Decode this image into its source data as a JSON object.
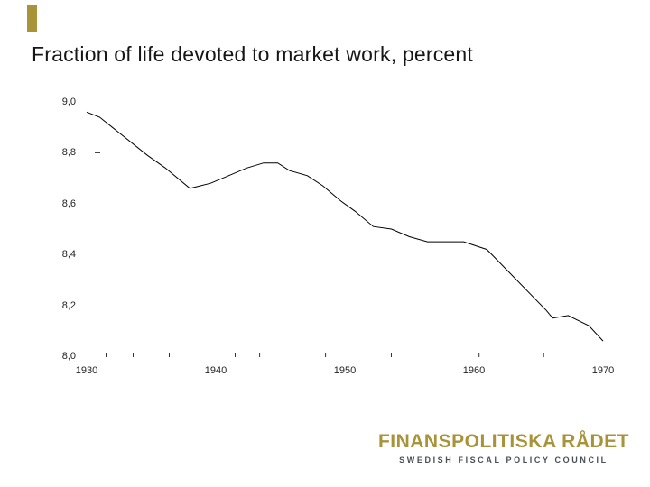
{
  "slide": {
    "title": "Fraction of life devoted to market work, percent",
    "accent_color": "#A99339"
  },
  "logo": {
    "name": "FINANSPOLITISKA RÅDET",
    "subtitle": "SWEDISH FISCAL POLICY COUNCIL",
    "gold_color": "#A99339",
    "subtitle_color": "#4A4F54"
  },
  "chart_data": {
    "type": "line",
    "title": "Fraction of life devoted to market work, percent",
    "xlabel": "",
    "ylabel": "",
    "xlim": [
      1930,
      1970
    ],
    "ylim": [
      8.0,
      9.0
    ],
    "grid": false,
    "legend": false,
    "line_color": "#000000",
    "x_tick_labels": [
      "1930",
      "1940",
      "1950",
      "1960",
      "1970"
    ],
    "x_tick_years": [
      1930,
      1940,
      1950,
      1960,
      1970
    ],
    "y_tick_labels": [
      "9,0",
      "8,8",
      "8,6",
      "8,4",
      "8,2",
      "8,0"
    ],
    "y_tick_values": [
      9.0,
      8.8,
      8.6,
      8.4,
      8.2,
      8.0
    ],
    "y_dash_at_value": 8.8,
    "x_minor_tick_years": [
      1931.5,
      1933.6,
      1936.4,
      1941.5,
      1943.4,
      1948.5,
      1953.6,
      1960.4,
      1965.4
    ],
    "series": [
      {
        "name": "Fraction of life devoted to market work",
        "points": [
          [
            1930.0,
            8.96
          ],
          [
            1931.0,
            8.94
          ],
          [
            1934.7,
            8.79
          ],
          [
            1936.1,
            8.74
          ],
          [
            1938.0,
            8.66
          ],
          [
            1939.6,
            8.68
          ],
          [
            1941.0,
            8.71
          ],
          [
            1942.4,
            8.74
          ],
          [
            1943.7,
            8.76
          ],
          [
            1944.8,
            8.76
          ],
          [
            1945.7,
            8.73
          ],
          [
            1947.1,
            8.71
          ],
          [
            1948.3,
            8.67
          ],
          [
            1949.7,
            8.61
          ],
          [
            1950.8,
            8.57
          ],
          [
            1952.2,
            8.51
          ],
          [
            1953.6,
            8.5
          ],
          [
            1955.0,
            8.47
          ],
          [
            1956.4,
            8.45
          ],
          [
            1959.2,
            8.45
          ],
          [
            1961.0,
            8.42
          ],
          [
            1965.6,
            8.18
          ],
          [
            1966.1,
            8.15
          ],
          [
            1967.3,
            8.16
          ],
          [
            1968.9,
            8.12
          ],
          [
            1970.0,
            8.06
          ]
        ]
      }
    ]
  }
}
